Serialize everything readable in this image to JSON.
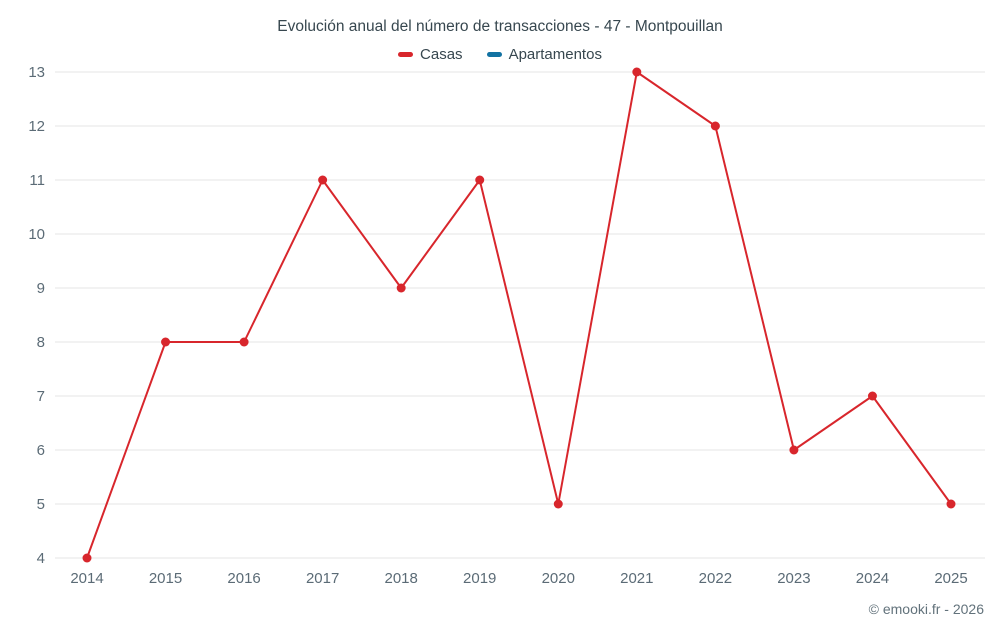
{
  "header": {
    "title": "Evolución anual del número de transacciones - 47 - Montpouillan"
  },
  "legend": {
    "items": [
      {
        "label": "Casas",
        "color": "#d8262c"
      },
      {
        "label": "Apartamentos",
        "color": "#1272a2"
      }
    ]
  },
  "footer": {
    "credit": "© emooki.fr - 2026"
  },
  "chart_data": {
    "type": "line",
    "title": "Evolución anual del número de transacciones - 47 - Montpouillan",
    "categories": [
      "2014",
      "2015",
      "2016",
      "2017",
      "2018",
      "2019",
      "2020",
      "2021",
      "2022",
      "2023",
      "2024",
      "2025"
    ],
    "series": [
      {
        "name": "Casas",
        "color": "#d8262c",
        "values": [
          4,
          8,
          8,
          11,
          9,
          11,
          5,
          13,
          12,
          6,
          7,
          5
        ]
      },
      {
        "name": "Apartamentos",
        "color": "#1272a2",
        "values": []
      }
    ],
    "xlabel": "",
    "ylabel": "",
    "ylim": [
      4,
      13
    ],
    "y_tick_step": 1,
    "grid": true,
    "legend_position": "top",
    "marker": "circle"
  }
}
